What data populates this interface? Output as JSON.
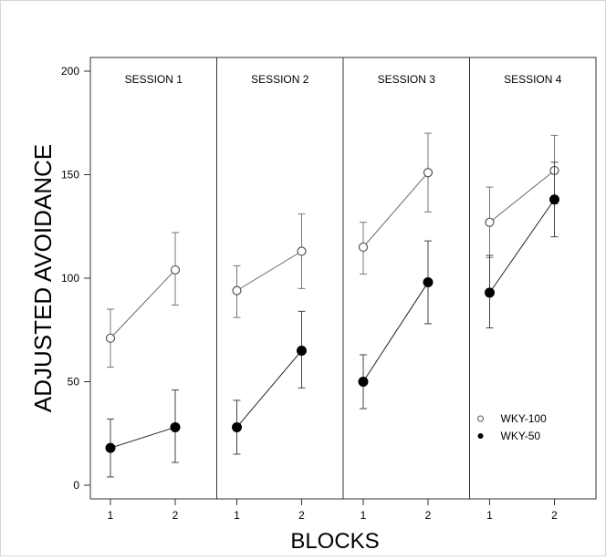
{
  "chart_data": {
    "type": "line",
    "ylabel": "ADJUSTED AVOIDANCE",
    "xlabel": "BLOCKS",
    "ylim": [
      0,
      200
    ],
    "yticks": [
      0,
      50,
      100,
      150,
      200
    ],
    "xticks": [
      "1",
      "2"
    ],
    "legend": {
      "placement": "bottom-right of SESSION 4 panel",
      "entries": [
        {
          "name": "WKY-100",
          "marker": "open-circle"
        },
        {
          "name": "WKY-50",
          "marker": "filled-circle"
        }
      ]
    },
    "panels": [
      {
        "title": "SESSION 1",
        "series": [
          {
            "name": "WKY-100",
            "x": [
              1,
              2
            ],
            "y": [
              71,
              104
            ],
            "err_low": [
              57,
              87
            ],
            "err_high": [
              85,
              122
            ]
          },
          {
            "name": "WKY-50",
            "x": [
              1,
              2
            ],
            "y": [
              18,
              28
            ],
            "err_low": [
              4,
              11
            ],
            "err_high": [
              32,
              46
            ]
          }
        ]
      },
      {
        "title": "SESSION 2",
        "series": [
          {
            "name": "WKY-100",
            "x": [
              1,
              2
            ],
            "y": [
              94,
              113
            ],
            "err_low": [
              81,
              95
            ],
            "err_high": [
              106,
              131
            ]
          },
          {
            "name": "WKY-50",
            "x": [
              1,
              2
            ],
            "y": [
              28,
              65
            ],
            "err_low": [
              15,
              47
            ],
            "err_high": [
              41,
              84
            ]
          }
        ]
      },
      {
        "title": "SESSION 3",
        "series": [
          {
            "name": "WKY-100",
            "x": [
              1,
              2
            ],
            "y": [
              115,
              151
            ],
            "err_low": [
              102,
              132
            ],
            "err_high": [
              127,
              170
            ]
          },
          {
            "name": "WKY-50",
            "x": [
              1,
              2
            ],
            "y": [
              50,
              98
            ],
            "err_low": [
              37,
              78
            ],
            "err_high": [
              63,
              118
            ]
          }
        ]
      },
      {
        "title": "SESSION 4",
        "series": [
          {
            "name": "WKY-100",
            "x": [
              1,
              2
            ],
            "y": [
              127,
              152
            ],
            "err_low": [
              110,
              136
            ],
            "err_high": [
              144,
              169
            ]
          },
          {
            "name": "WKY-50",
            "x": [
              1,
              2
            ],
            "y": [
              93,
              138
            ],
            "err_low": [
              76,
              120
            ],
            "err_high": [
              111,
              156
            ]
          }
        ]
      }
    ]
  }
}
